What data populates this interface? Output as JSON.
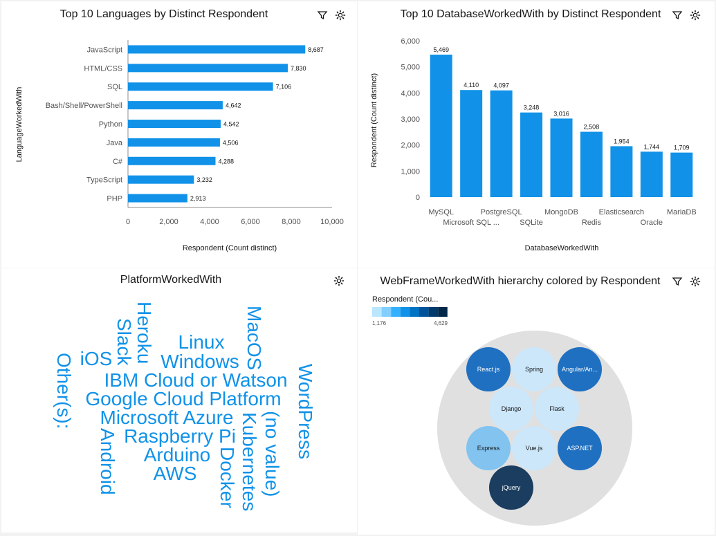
{
  "tiles": {
    "languages": {
      "title": "Top 10 Languages by Distinct Respondent"
    },
    "databases": {
      "title": "Top 10 DatabaseWorkedWith by Distinct Respondent"
    },
    "platforms": {
      "title": "PlatformWorkedWith"
    },
    "webframes": {
      "title": "WebFrameWorkedWith hierarchy colored by Respondent"
    }
  },
  "icons": {
    "filter": "filter-icon",
    "settings": "settings-icon"
  },
  "colors": {
    "bar": "#1192e8",
    "word": "#1192e8",
    "bubble_bg": "#e0e0e0"
  },
  "chart_data": [
    {
      "type": "bar",
      "orientation": "horizontal",
      "title": "Top 10 Languages by Distinct Respondent",
      "xlabel": "Respondent (Count distinct)",
      "ylabel": "LanguageWorkedWith",
      "categories": [
        "JavaScript",
        "HTML/CSS",
        "SQL",
        "Bash/Shell/PowerShell",
        "Python",
        "Java",
        "C#",
        "TypeScript",
        "PHP"
      ],
      "values": [
        8687,
        7830,
        7106,
        4642,
        4542,
        4506,
        4288,
        3232,
        2913
      ],
      "value_labels": [
        "8,687",
        "7,830",
        "7,106",
        "4,642",
        "4,542",
        "4,506",
        "4,288",
        "3,232",
        "2,913"
      ],
      "xticks": [
        "0",
        "2,000",
        "4,000",
        "6,000",
        "8,000",
        "10,000"
      ],
      "xlim": [
        0,
        10000
      ]
    },
    {
      "type": "bar",
      "orientation": "vertical",
      "title": "Top 10 DatabaseWorkedWith by Distinct Respondent",
      "xlabel": "DatabaseWorkedWith",
      "ylabel": "Respondent (Count distinct)",
      "categories": [
        "MySQL",
        "Microsoft SQL ...",
        "PostgreSQL",
        "SQLite",
        "MongoDB",
        "Redis",
        "Elasticsearch",
        "Oracle",
        "MariaDB"
      ],
      "values": [
        5469,
        4110,
        4097,
        3248,
        3016,
        2508,
        1954,
        1744,
        1709
      ],
      "value_labels": [
        "5,469",
        "4,110",
        "4,097",
        "3,248",
        "3,016",
        "2,508",
        "1,954",
        "1,744",
        "1,709"
      ],
      "yticks": [
        "0",
        "1,000",
        "2,000",
        "3,000",
        "4,000",
        "5,000",
        "6,000"
      ],
      "ylim": [
        0,
        6000
      ]
    },
    {
      "type": "wordcloud",
      "title": "PlatformWorkedWith",
      "words": [
        "Linux",
        "Windows",
        "iOS",
        "IBM Cloud or Watson",
        "Google Cloud Platform",
        "Microsoft Azure",
        "Raspberry Pi",
        "Arduino",
        "AWS",
        "Heroku",
        "Slack",
        "MacOS",
        "WordPress",
        "Other(s):",
        "Android",
        "Docker",
        "Kubernetes",
        "(no value)"
      ]
    },
    {
      "type": "bubble",
      "title": "WebFrameWorkedWith hierarchy colored by Respondent",
      "legend": {
        "title": "Respondent (Cou...",
        "min_label": "1,176",
        "max_label": "4,629",
        "min": 1176,
        "max": 4629
      },
      "legend_colors": [
        "#bae6ff",
        "#82cfff",
        "#33b1ff",
        "#1192e8",
        "#0072c3",
        "#00539a",
        "#003a6d",
        "#012749"
      ],
      "nodes": [
        {
          "label": "React.js",
          "color": "#1f70c1"
        },
        {
          "label": "Spring",
          "color": "#cce7fa"
        },
        {
          "label": "Angular/An...",
          "color": "#1f70c1"
        },
        {
          "label": "Django",
          "color": "#cce7fa"
        },
        {
          "label": "Flask",
          "color": "#cce7fa"
        },
        {
          "label": "Express",
          "color": "#82c3f0"
        },
        {
          "label": "Vue.js",
          "color": "#cce7fa"
        },
        {
          "label": "ASP.NET",
          "color": "#1f70c1"
        },
        {
          "label": "jQuery",
          "color": "#1b3d5f"
        }
      ]
    }
  ]
}
